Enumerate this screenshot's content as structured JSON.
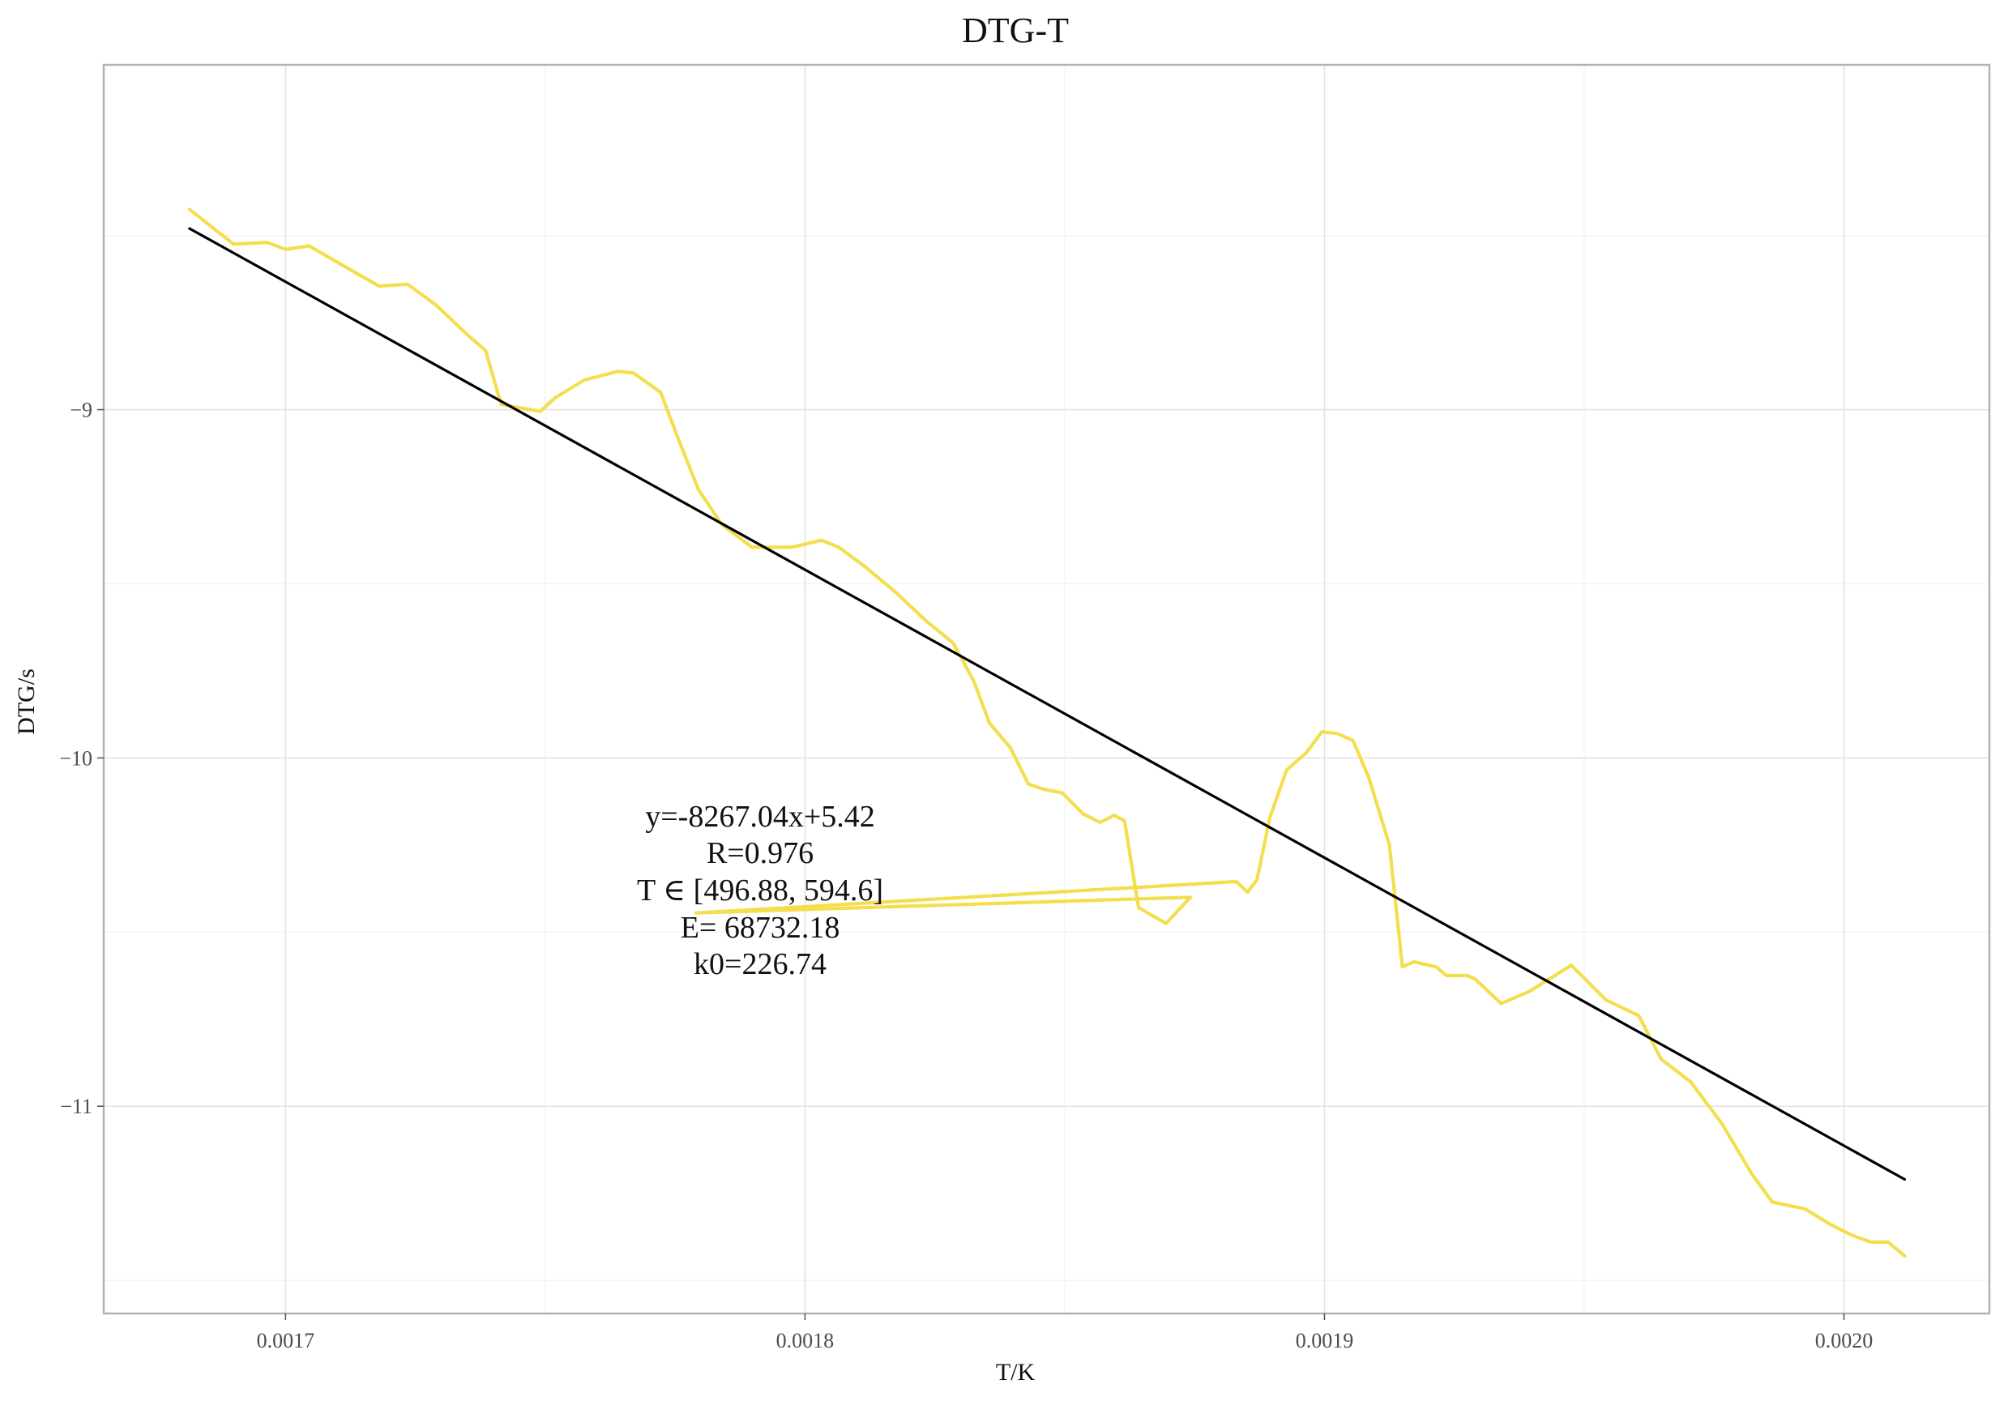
{
  "chart_data": {
    "type": "line",
    "title": "DTG-T",
    "xlabel": "T/K",
    "ylabel": "DTG/s",
    "xlim": [
      0.001665,
      0.002028
    ],
    "ylim": [
      -11.595,
      -8.01
    ],
    "x_ticks": [
      0.0017,
      0.0018,
      0.0019,
      0.002
    ],
    "x_tick_labels": [
      "0.0017",
      "0.0018",
      "0.0019",
      "0.0020"
    ],
    "y_ticks": [
      -9,
      -10,
      -11
    ],
    "y_tick_labels": [
      "−9",
      "−10",
      "−11"
    ],
    "grid": true,
    "annotation": [
      "y=-8267.04x+5.42",
      "R=0.976",
      "T ∈ [496.88, 594.6]",
      "E= 68732.18",
      "k0=226.74"
    ],
    "series": [
      {
        "type": "line",
        "color": "#f5de4e",
        "x": [
          0.0016815,
          0.00169,
          0.0016965,
          0.0017,
          0.0017045,
          0.0017115,
          0.001718,
          0.0017235,
          0.001729,
          0.001735,
          0.0017385,
          0.0017415,
          0.001749,
          0.001752,
          0.0017575,
          0.001764,
          0.001767,
          0.0017722,
          0.0017755,
          0.0017795,
          0.001784,
          0.0017898,
          0.0017975,
          0.0018032,
          0.0018065,
          0.0018115,
          0.0018175,
          0.0018232,
          0.0018285,
          0.0018325,
          0.0018355,
          0.0018395,
          0.001843,
          0.001846,
          0.0018495,
          0.0018535,
          0.0018568,
          0.0018595,
          0.0018615,
          0.0018642,
          0.0018695,
          0.0018742,
          0.001779,
          0.001883,
          0.0018852,
          0.001887,
          0.0018895,
          0.0018927,
          0.0018965,
          0.0018995,
          0.0019025,
          0.0019055,
          0.0019085,
          0.0019125,
          0.001915,
          0.0019172,
          0.0019215,
          0.0019235,
          0.0019275,
          0.001929,
          0.001934,
          0.0019395,
          0.0019475,
          0.0019542,
          0.0019605,
          0.0019648,
          0.0019705,
          0.0019765,
          0.0019823,
          0.0019862,
          0.0019925,
          0.0019975,
          0.0020015,
          0.0020052,
          0.0020085,
          0.0020117
        ],
        "y": [
          -8.425,
          -8.525,
          -8.52,
          -8.54,
          -8.53,
          -8.59,
          -8.645,
          -8.64,
          -8.7,
          -8.785,
          -8.83,
          -8.985,
          -9.005,
          -8.965,
          -8.915,
          -8.89,
          -8.895,
          -8.95,
          -9.08,
          -9.23,
          -9.33,
          -9.395,
          -9.395,
          -9.375,
          -9.395,
          -9.45,
          -9.525,
          -9.605,
          -9.67,
          -9.78,
          -9.9,
          -9.97,
          -10.075,
          -10.09,
          -10.1,
          -10.16,
          -10.185,
          -10.165,
          -10.18,
          -10.43,
          -10.475,
          -10.4,
          -10.445,
          -10.355,
          -10.385,
          -10.35,
          -10.17,
          -10.035,
          -9.985,
          -9.925,
          -9.93,
          -9.95,
          -10.055,
          -10.25,
          -10.6,
          -10.585,
          -10.6,
          -10.625,
          -10.625,
          -10.635,
          -10.705,
          -10.67,
          -10.595,
          -10.695,
          -10.74,
          -10.865,
          -10.93,
          -11.05,
          -11.195,
          -11.275,
          -11.295,
          -11.34,
          -11.37,
          -11.39,
          -11.39,
          -11.43
        ]
      },
      {
        "type": "line",
        "name": "y=-8267.04x+5.42",
        "color": "#000000",
        "x": [
          0.0016815,
          0.0020117
        ],
        "y": [
          -8.48,
          -11.21
        ]
      }
    ]
  }
}
